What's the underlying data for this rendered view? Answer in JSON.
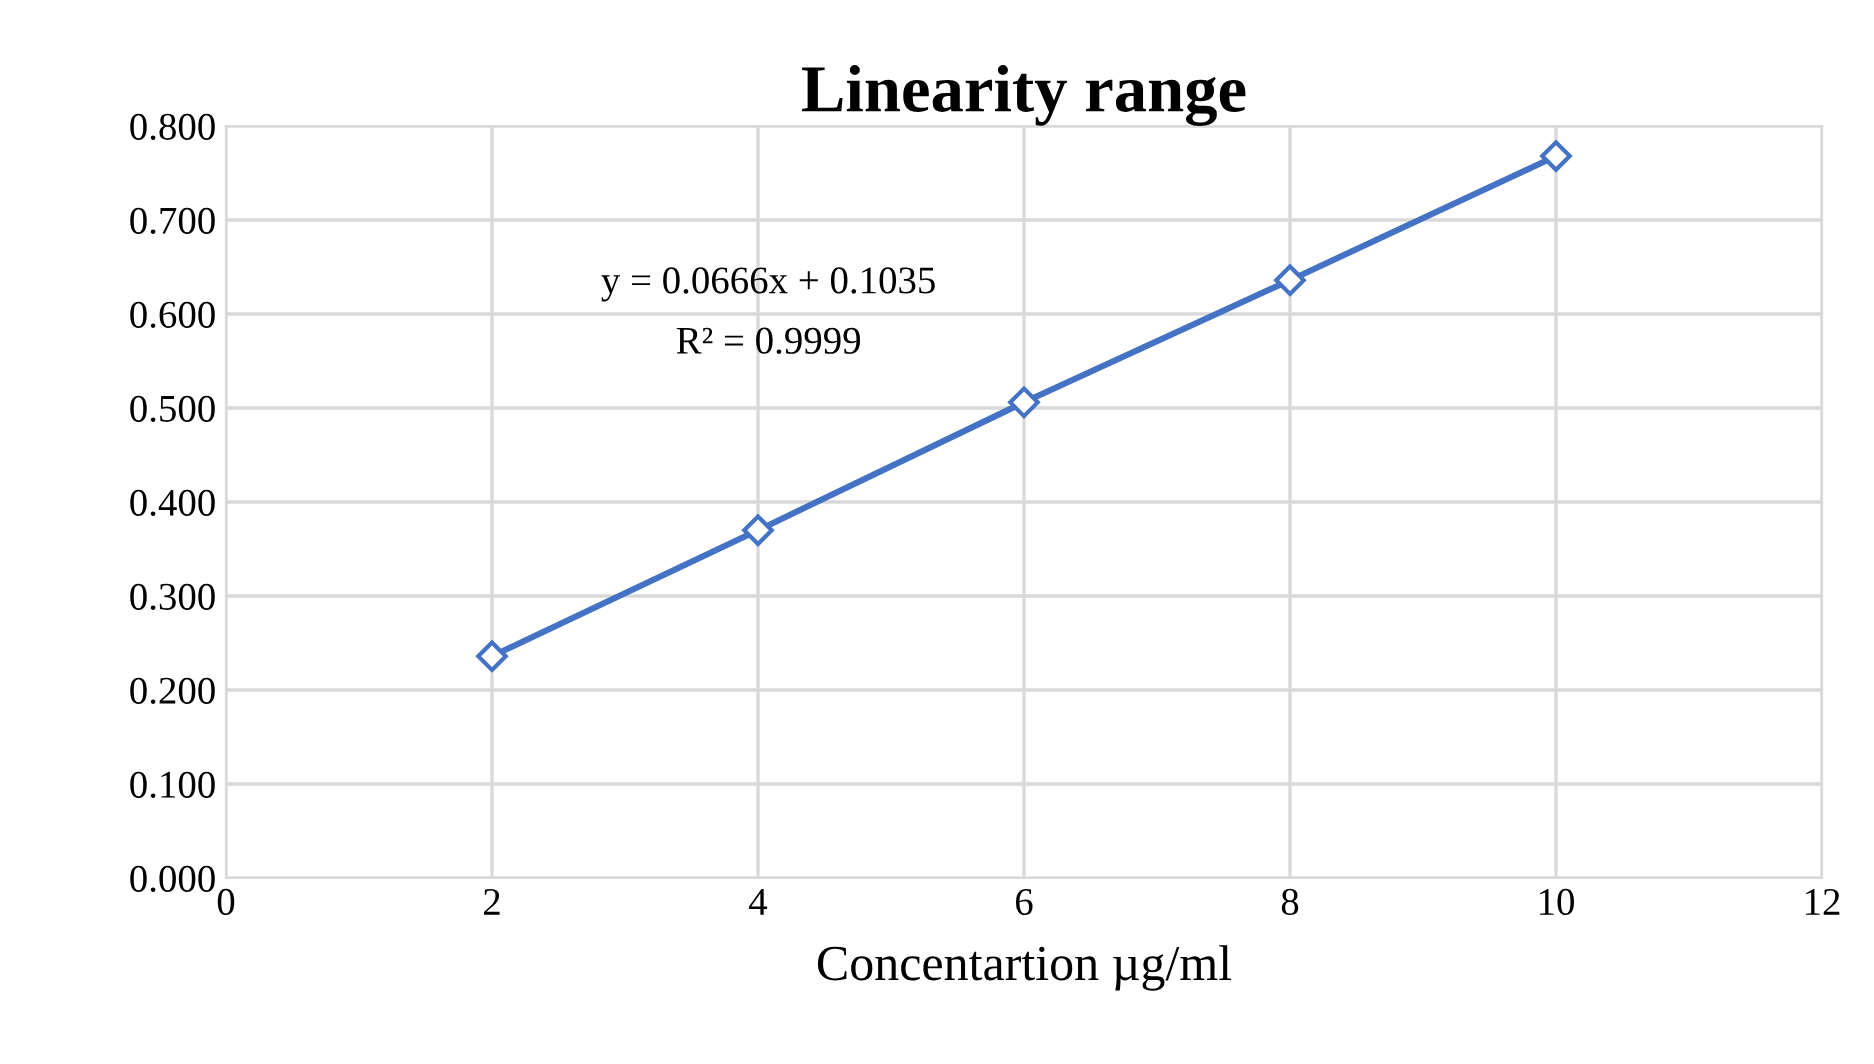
{
  "chart_data": {
    "type": "line",
    "title": "Linearity range",
    "xlabel": "Concentartion µg/ml",
    "x": [
      2,
      4,
      6,
      8,
      10
    ],
    "series": [
      {
        "color": "#4472c4",
        "values": [
          0.236,
          0.37,
          0.506,
          0.636,
          0.768
        ]
      }
    ],
    "xlim": [
      0,
      12
    ],
    "xticks": [
      0,
      2,
      4,
      6,
      8,
      10,
      12
    ],
    "ylim": [
      0,
      0.8
    ],
    "yticks": [
      {
        "value": 0,
        "label": "0.000"
      },
      {
        "value": 0.1,
        "label": "0.100"
      },
      {
        "value": 0.2,
        "label": "0.200"
      },
      {
        "value": 0.3,
        "label": "0.300"
      },
      {
        "value": 0.4,
        "label": "0.400"
      },
      {
        "value": 0.5,
        "label": "0.500"
      },
      {
        "value": 0.6,
        "label": "0.600"
      },
      {
        "value": 0.7,
        "label": "0.700"
      },
      {
        "value": 0.8,
        "label": "0.800"
      }
    ],
    "grid": true,
    "marker": "diamond",
    "line_style": "solid",
    "legend": false,
    "annotations": [
      "y = 0.0666x + 0.1035",
      "R² = 0.9999"
    ]
  }
}
